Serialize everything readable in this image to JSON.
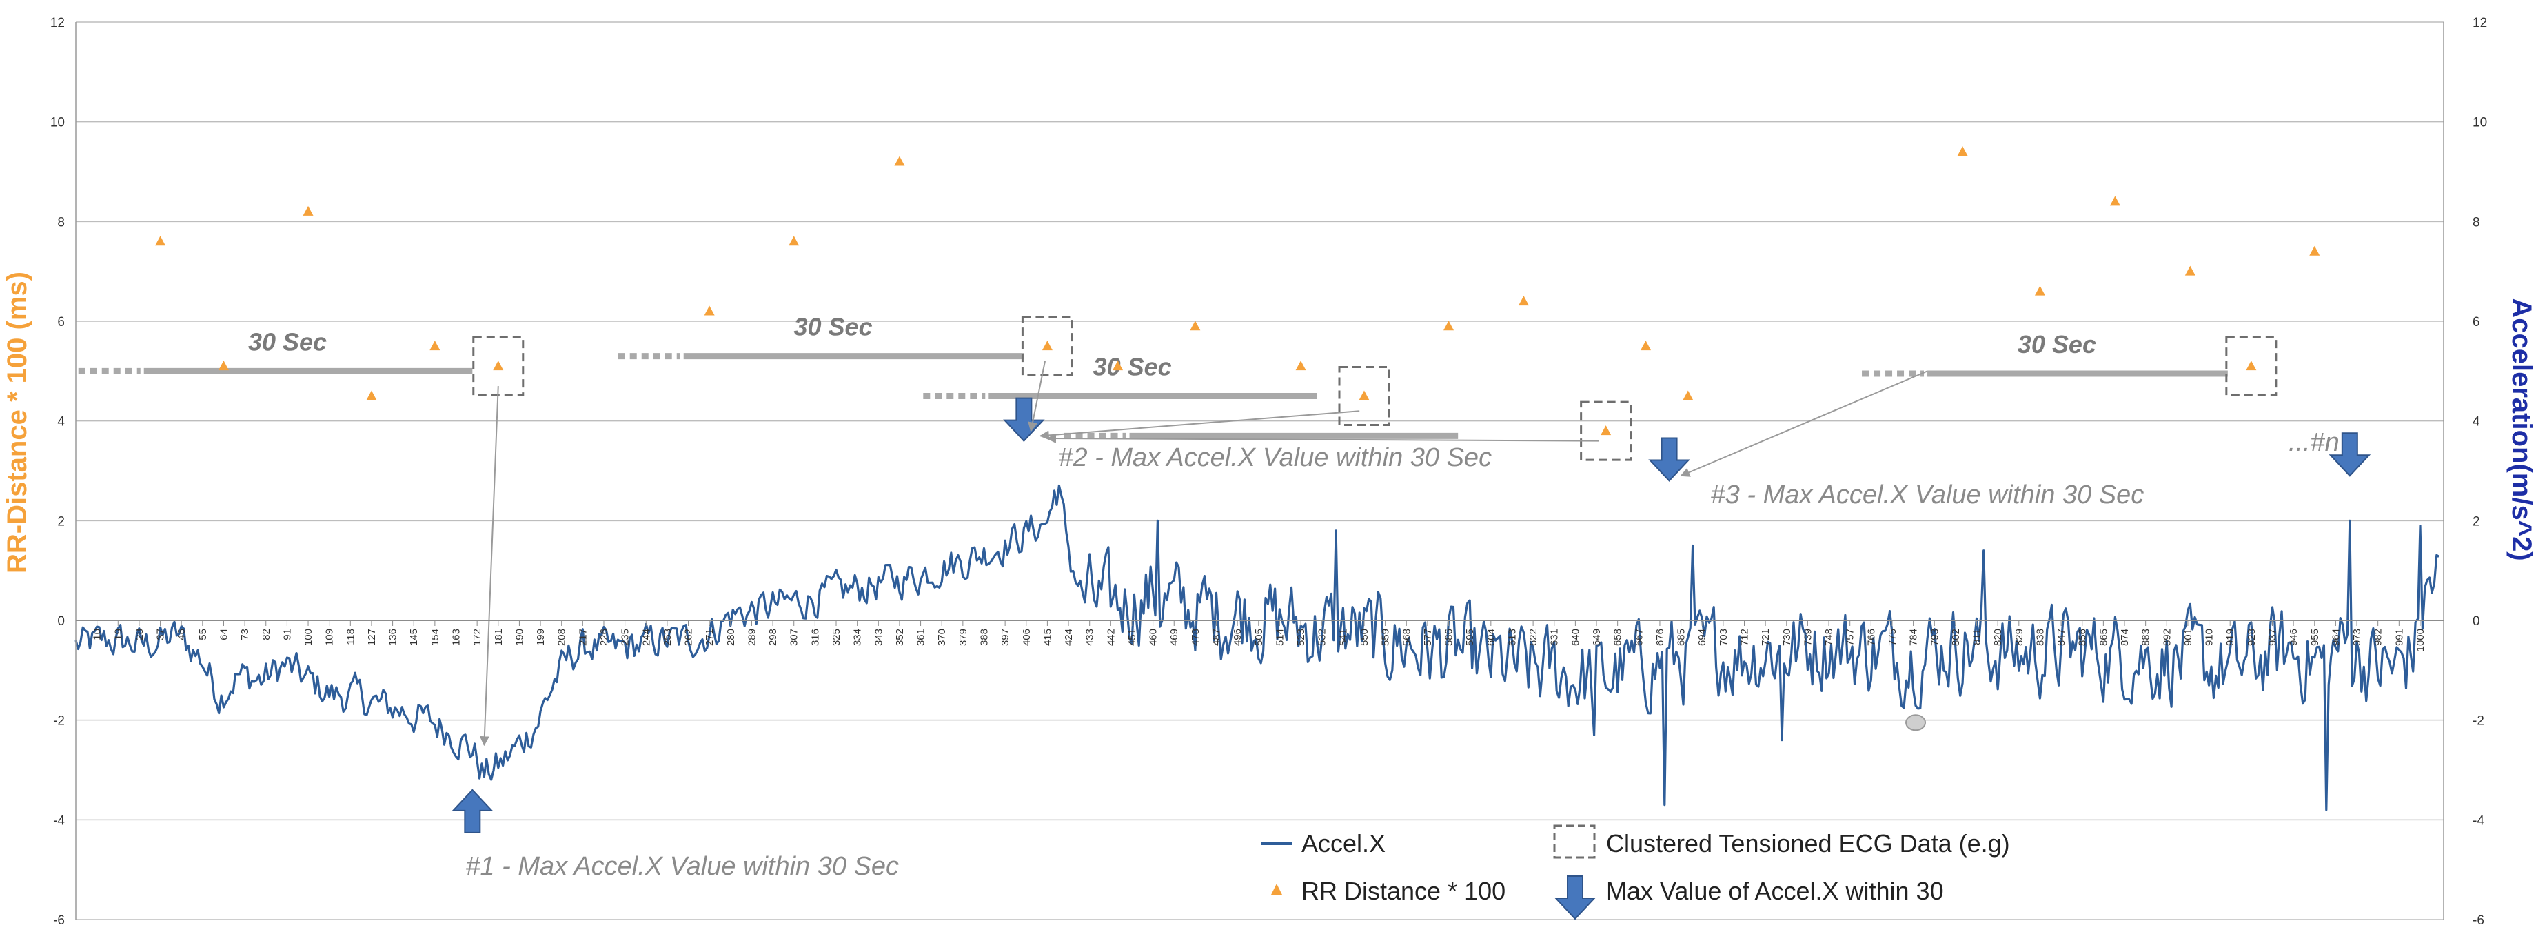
{
  "chart_data": {
    "type": "line",
    "y_left": {
      "label": "RR-Distance * 100 (ms)",
      "range": [
        -6,
        12
      ],
      "ticks": [
        "12",
        "10",
        "8",
        "6",
        "4",
        "2",
        "0",
        "-2",
        "-4",
        "-6"
      ]
    },
    "y_right": {
      "label": "Acceleration(m/s^2)",
      "range": [
        -6,
        12
      ],
      "ticks": [
        "12",
        "10",
        "8",
        "6",
        "4",
        "2",
        "0",
        "-2",
        "-4",
        "-6"
      ]
    },
    "x": {
      "range": [
        1,
        1010
      ],
      "tick_labels": [
        "10",
        "19",
        "28",
        "37",
        "46",
        "55",
        "64",
        "73",
        "82",
        "91",
        "100",
        "109",
        "118",
        "127",
        "136",
        "145",
        "154",
        "163",
        "172",
        "181",
        "190",
        "199",
        "208",
        "217",
        "226",
        "235",
        "244",
        "253",
        "262",
        "271",
        "280",
        "289",
        "298",
        "307",
        "316",
        "325",
        "334",
        "343",
        "352",
        "361",
        "370",
        "379",
        "388",
        "397",
        "406",
        "415",
        "424",
        "433",
        "442",
        "451",
        "460",
        "469",
        "478",
        "487",
        "496",
        "505",
        "514",
        "523",
        "532",
        "541",
        "550",
        "559",
        "568",
        "577",
        "586",
        "595",
        "604",
        "613",
        "622",
        "631",
        "640",
        "649",
        "658",
        "667",
        "676",
        "685",
        "694",
        "703",
        "712",
        "721",
        "730",
        "739",
        "748",
        "757",
        "766",
        "775",
        "784",
        "793",
        "802",
        "811",
        "820",
        "829",
        "838",
        "847",
        "856",
        "865",
        "874",
        "883",
        "892",
        "901",
        "910",
        "919",
        "928",
        "937",
        "946",
        "955",
        "964",
        "973",
        "982",
        "991",
        "1000"
      ]
    },
    "series": [
      {
        "name": "Accel.X",
        "color": "#2e5d99",
        "keypoints": [
          [
            1,
            -0.5
          ],
          [
            15,
            -0.4
          ],
          [
            30,
            -0.5
          ],
          [
            45,
            -0.3
          ],
          [
            55,
            -0.8
          ],
          [
            62,
            -1.5
          ],
          [
            70,
            -1.1
          ],
          [
            80,
            -1.2
          ],
          [
            90,
            -0.9
          ],
          [
            100,
            -1.2
          ],
          [
            110,
            -1.5
          ],
          [
            120,
            -1.5
          ],
          [
            130,
            -1.7
          ],
          [
            140,
            -1.8
          ],
          [
            150,
            -2.0
          ],
          [
            160,
            -2.2
          ],
          [
            170,
            -2.6
          ],
          [
            175,
            -3.1
          ],
          [
            182,
            -2.9
          ],
          [
            190,
            -2.5
          ],
          [
            198,
            -2.0
          ],
          [
            205,
            -1.2
          ],
          [
            212,
            -0.7
          ],
          [
            220,
            -0.5
          ],
          [
            230,
            -0.6
          ],
          [
            240,
            -0.5
          ],
          [
            250,
            -0.4
          ],
          [
            260,
            -0.4
          ],
          [
            270,
            -0.3
          ],
          [
            280,
            0.1
          ],
          [
            290,
            0.2
          ],
          [
            300,
            0.3
          ],
          [
            310,
            0.4
          ],
          [
            320,
            0.5
          ],
          [
            330,
            0.6
          ],
          [
            340,
            0.7
          ],
          [
            350,
            0.8
          ],
          [
            360,
            0.9
          ],
          [
            370,
            1.1
          ],
          [
            380,
            1.2
          ],
          [
            390,
            1.4
          ],
          [
            400,
            1.6
          ],
          [
            408,
            1.8
          ],
          [
            415,
            2.0
          ],
          [
            420,
            2.5
          ],
          [
            425,
            1.2
          ],
          [
            430,
            0.5
          ],
          [
            440,
            0.3
          ],
          [
            450,
            0.4
          ],
          [
            460,
            0.5
          ],
          [
            470,
            0.3
          ],
          [
            480,
            0.2
          ],
          [
            490,
            0.1
          ],
          [
            500,
            0.2
          ],
          [
            510,
            0.0
          ],
          [
            520,
            -0.1
          ],
          [
            530,
            -0.2
          ],
          [
            540,
            -0.2
          ],
          [
            550,
            -0.3
          ],
          [
            560,
            -0.4
          ],
          [
            570,
            -0.5
          ],
          [
            580,
            -0.6
          ],
          [
            590,
            -0.6
          ],
          [
            600,
            -0.8
          ],
          [
            610,
            -0.9
          ],
          [
            620,
            -1.0
          ],
          [
            630,
            -1.0
          ],
          [
            640,
            -1.1
          ],
          [
            650,
            -1.2
          ],
          [
            660,
            -1.0
          ],
          [
            670,
            -0.9
          ],
          [
            680,
            -0.8
          ],
          [
            690,
            -0.8
          ],
          [
            700,
            -0.6
          ],
          [
            710,
            -0.7
          ],
          [
            720,
            -0.6
          ],
          [
            730,
            -0.6
          ],
          [
            740,
            -0.5
          ],
          [
            750,
            -0.5
          ],
          [
            760,
            -0.6
          ],
          [
            770,
            -0.6
          ],
          [
            780,
            -0.7
          ],
          [
            790,
            -0.6
          ],
          [
            800,
            -0.5
          ],
          [
            810,
            -0.5
          ],
          [
            820,
            -0.6
          ],
          [
            830,
            -0.7
          ],
          [
            840,
            -0.6
          ],
          [
            850,
            -0.6
          ],
          [
            860,
            -0.6
          ],
          [
            870,
            -0.7
          ],
          [
            880,
            -0.7
          ],
          [
            890,
            -0.8
          ],
          [
            900,
            -0.8
          ],
          [
            910,
            -0.9
          ],
          [
            920,
            -1.0
          ],
          [
            930,
            -0.8
          ],
          [
            940,
            -0.6
          ],
          [
            950,
            -0.7
          ],
          [
            960,
            -0.9
          ],
          [
            965,
            -0.5
          ],
          [
            970,
            -0.6
          ],
          [
            980,
            -0.9
          ],
          [
            990,
            -1.0
          ],
          [
            998,
            -0.5
          ],
          [
            1003,
            0.6
          ],
          [
            1008,
            0.9
          ]
        ],
        "spikes": [
          [
            418,
            2.6
          ],
          [
            462,
            2.0
          ],
          [
            538,
            1.8
          ],
          [
            648,
            -2.3
          ],
          [
            678,
            -3.7
          ],
          [
            690,
            1.5
          ],
          [
            728,
            -2.4
          ],
          [
            814,
            1.4
          ],
          [
            960,
            -3.8
          ],
          [
            970,
            2.0
          ],
          [
            1000,
            1.9
          ]
        ]
      },
      {
        "name": "RR Distance * 100",
        "color": "#f5a13a",
        "points": [
          [
            37,
            7.6
          ],
          [
            64,
            5.1
          ],
          [
            100,
            8.2
          ],
          [
            127,
            4.5
          ],
          [
            154,
            5.5
          ],
          [
            181,
            5.1
          ],
          [
            271,
            6.2
          ],
          [
            307,
            7.6
          ],
          [
            352,
            9.2
          ],
          [
            415,
            5.5
          ],
          [
            445,
            5.1
          ],
          [
            478,
            5.9
          ],
          [
            523,
            5.1
          ],
          [
            550,
            4.5
          ],
          [
            586,
            5.9
          ],
          [
            618,
            6.4
          ],
          [
            653,
            3.8
          ],
          [
            670,
            5.5
          ],
          [
            688,
            4.5
          ],
          [
            805,
            9.4
          ],
          [
            838,
            6.6
          ],
          [
            870,
            8.4
          ],
          [
            902,
            7.0
          ],
          [
            928,
            5.1
          ],
          [
            955,
            7.4
          ]
        ]
      }
    ],
    "windows": [
      {
        "label": "30 Sec",
        "x0": 30,
        "x1": 170,
        "y": 5.0,
        "box_x": 181,
        "box_y": 5.1
      },
      {
        "label": "30 Sec",
        "x0": 260,
        "x1": 405,
        "y": 5.3,
        "box_x": 415,
        "box_y": 5.5
      },
      {
        "label": "30 Sec",
        "x0": 390,
        "x1": 530,
        "y": 4.5,
        "box_x": 550,
        "box_y": 4.5
      },
      {
        "label": "",
        "x0": 450,
        "x1": 590,
        "y": 3.7,
        "box_x": 653,
        "box_y": 3.8
      },
      {
        "label": "30 Sec",
        "x0": 790,
        "x1": 918,
        "y": 4.95,
        "box_x": 928,
        "box_y": 5.1
      }
    ],
    "max_markers": [
      {
        "x": 170,
        "direction": "up",
        "y": -3.4,
        "label": "#1 -   Max Accel.X Value   within 30 Sec"
      },
      {
        "x": 405,
        "direction": "down",
        "y": 3.6,
        "label": "#2 -   Max Accel.X Value   within 30 Sec"
      },
      {
        "x": 680,
        "direction": "down",
        "y": 2.8,
        "label": "#3 -   Max Accel.X Value   within 30 Sec"
      },
      {
        "x": 970,
        "direction": "down",
        "y": 2.9,
        "label": "...#n"
      }
    ],
    "legend": {
      "position": "bottom-center",
      "items": [
        {
          "name": "Accel.X",
          "marker": "line"
        },
        {
          "name": "Clustered Tensioned ECG Data (e.g)",
          "marker": "dashed-box"
        },
        {
          "name": "RR Distance * 100",
          "marker": "triangle"
        },
        {
          "name": "Max Value of Accel.X within 30",
          "marker": "down-arrow"
        }
      ]
    },
    "grid": true
  }
}
